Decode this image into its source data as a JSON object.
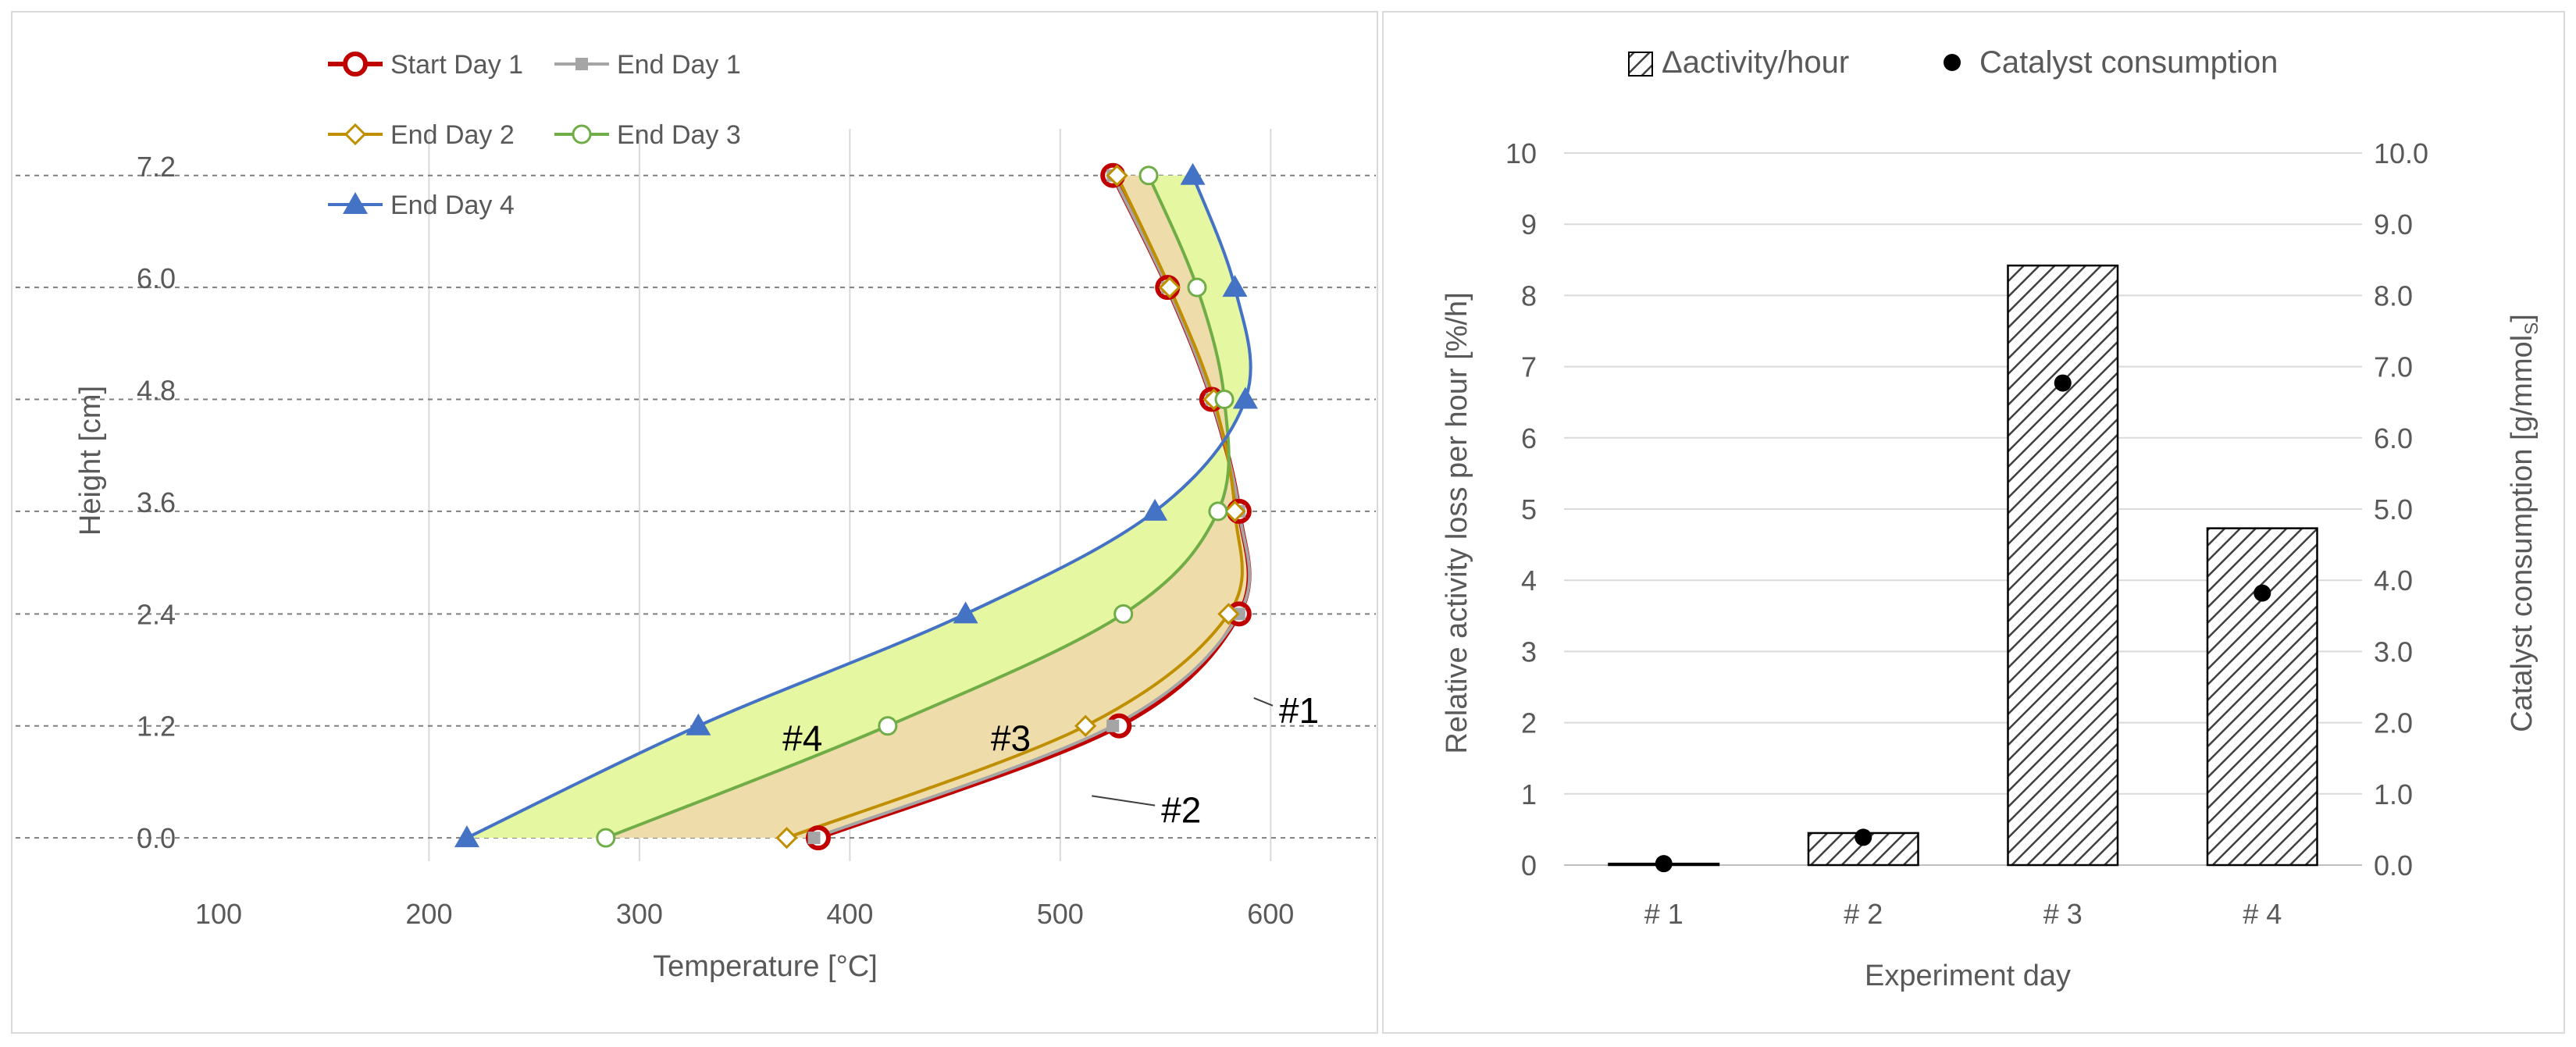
{
  "chart_data": [
    {
      "type": "line",
      "title": "",
      "xlabel": "Temperature [°C]",
      "ylabel": "Height [cm]",
      "xlim": [
        100,
        650
      ],
      "ylim": [
        -0.25,
        7.6
      ],
      "x_ticks": [
        100,
        200,
        300,
        400,
        500,
        600
      ],
      "y_ticks": [
        0.0,
        1.2,
        2.4,
        3.6,
        4.8,
        6.0,
        7.2
      ],
      "x_tick_labels": [
        "100",
        "200",
        "300",
        "400",
        "500",
        "600"
      ],
      "y_tick_labels": [
        "0.0",
        "1.2",
        "2.4",
        "3.6",
        "4.8",
        "6.0",
        "7.2"
      ],
      "thermocouple_heights": [
        0.0,
        1.2,
        2.4,
        3.5,
        4.7,
        5.9,
        7.1
      ],
      "series": [
        {
          "name": "Start Day 1",
          "color": "#c00000",
          "marker": "circle",
          "points": [
            [
              385,
              0.0
            ],
            [
              528,
              1.2
            ],
            [
              585,
              2.4
            ],
            [
              585,
              3.5
            ],
            [
              572,
              4.7
            ],
            [
              551,
              5.9
            ],
            [
              525,
              7.1
            ]
          ]
        },
        {
          "name": "End Day 1",
          "color": "#a5a5a5",
          "marker": "square",
          "points": [
            [
              383,
              0.0
            ],
            [
              525,
              1.2
            ],
            [
              585,
              2.4
            ],
            [
              585,
              3.5
            ],
            [
              572,
              4.7
            ],
            [
              551,
              5.9
            ],
            [
              525,
              7.1
            ]
          ]
        },
        {
          "name": "End Day 2",
          "color": "#bf8f00",
          "marker": "diamond",
          "points": [
            [
              370,
              0.0
            ],
            [
              512,
              1.2
            ],
            [
              580,
              2.4
            ],
            [
              583,
              3.5
            ],
            [
              573,
              4.7
            ],
            [
              552,
              5.9
            ],
            [
              527,
              7.1
            ]
          ]
        },
        {
          "name": "End Day 3",
          "color": "#70ad47",
          "marker": "open-circle",
          "points": [
            [
              284,
              0.0
            ],
            [
              418,
              1.2
            ],
            [
              530,
              2.4
            ],
            [
              575,
              3.5
            ],
            [
              578,
              4.7
            ],
            [
              565,
              5.9
            ],
            [
              542,
              7.1
            ]
          ]
        },
        {
          "name": "End Day 4",
          "color": "#4472c4",
          "marker": "triangle",
          "points": [
            [
              218,
              0.0
            ],
            [
              328,
              1.2
            ],
            [
              455,
              2.4
            ],
            [
              545,
              3.5
            ],
            [
              588,
              4.7
            ],
            [
              583,
              5.9
            ],
            [
              563,
              7.1
            ]
          ]
        }
      ],
      "areas": [
        {
          "between": [
            "End Day 4",
            "End Day 3"
          ],
          "color": "#e5f7a0"
        },
        {
          "between": [
            "End Day 3",
            "Start Day 1"
          ],
          "color": "#eedcaa"
        }
      ],
      "annotations": [
        {
          "text": "#1",
          "x": 604,
          "y": 1.35,
          "points_to": [
            592,
            1.5
          ]
        },
        {
          "text": "#2",
          "x": 548,
          "y": 0.28,
          "points_to": [
            515,
            0.45
          ]
        },
        {
          "text": "#3",
          "x": 467,
          "y": 1.05
        },
        {
          "text": "#4",
          "x": 368,
          "y": 1.05
        }
      ],
      "legend": "top-left"
    },
    {
      "type": "bar",
      "title": "",
      "xlabel": "Experiment day",
      "ylabel": "Relative activity loss per hour [%/h]",
      "y2label_main": "Catalyst consumption [g/mmol",
      "y2label_sub": "S",
      "y2label_end": "]",
      "categories": [
        "# 1",
        "# 2",
        "# 3",
        "# 4"
      ],
      "series": [
        {
          "name": "Δactivity/hour",
          "axis": "left",
          "style": "hatched",
          "values": [
            0.02,
            0.45,
            8.42,
            4.73
          ]
        },
        {
          "name": "Catalyst consumption",
          "axis": "right",
          "style": "dot",
          "values": [
            0.02,
            0.39,
            6.77,
            3.82
          ]
        }
      ],
      "ylim": [
        0,
        10
      ],
      "y2lim": [
        0,
        10
      ],
      "y_tick_labels": [
        "0",
        "1",
        "2",
        "3",
        "4",
        "5",
        "6",
        "7",
        "8",
        "9",
        "10"
      ],
      "y2_tick_labels": [
        "0.0",
        "1.0",
        "2.0",
        "3.0",
        "4.0",
        "5.0",
        "6.0",
        "7.0",
        "8.0",
        "9.0",
        "10.0"
      ],
      "legend": "top"
    }
  ]
}
